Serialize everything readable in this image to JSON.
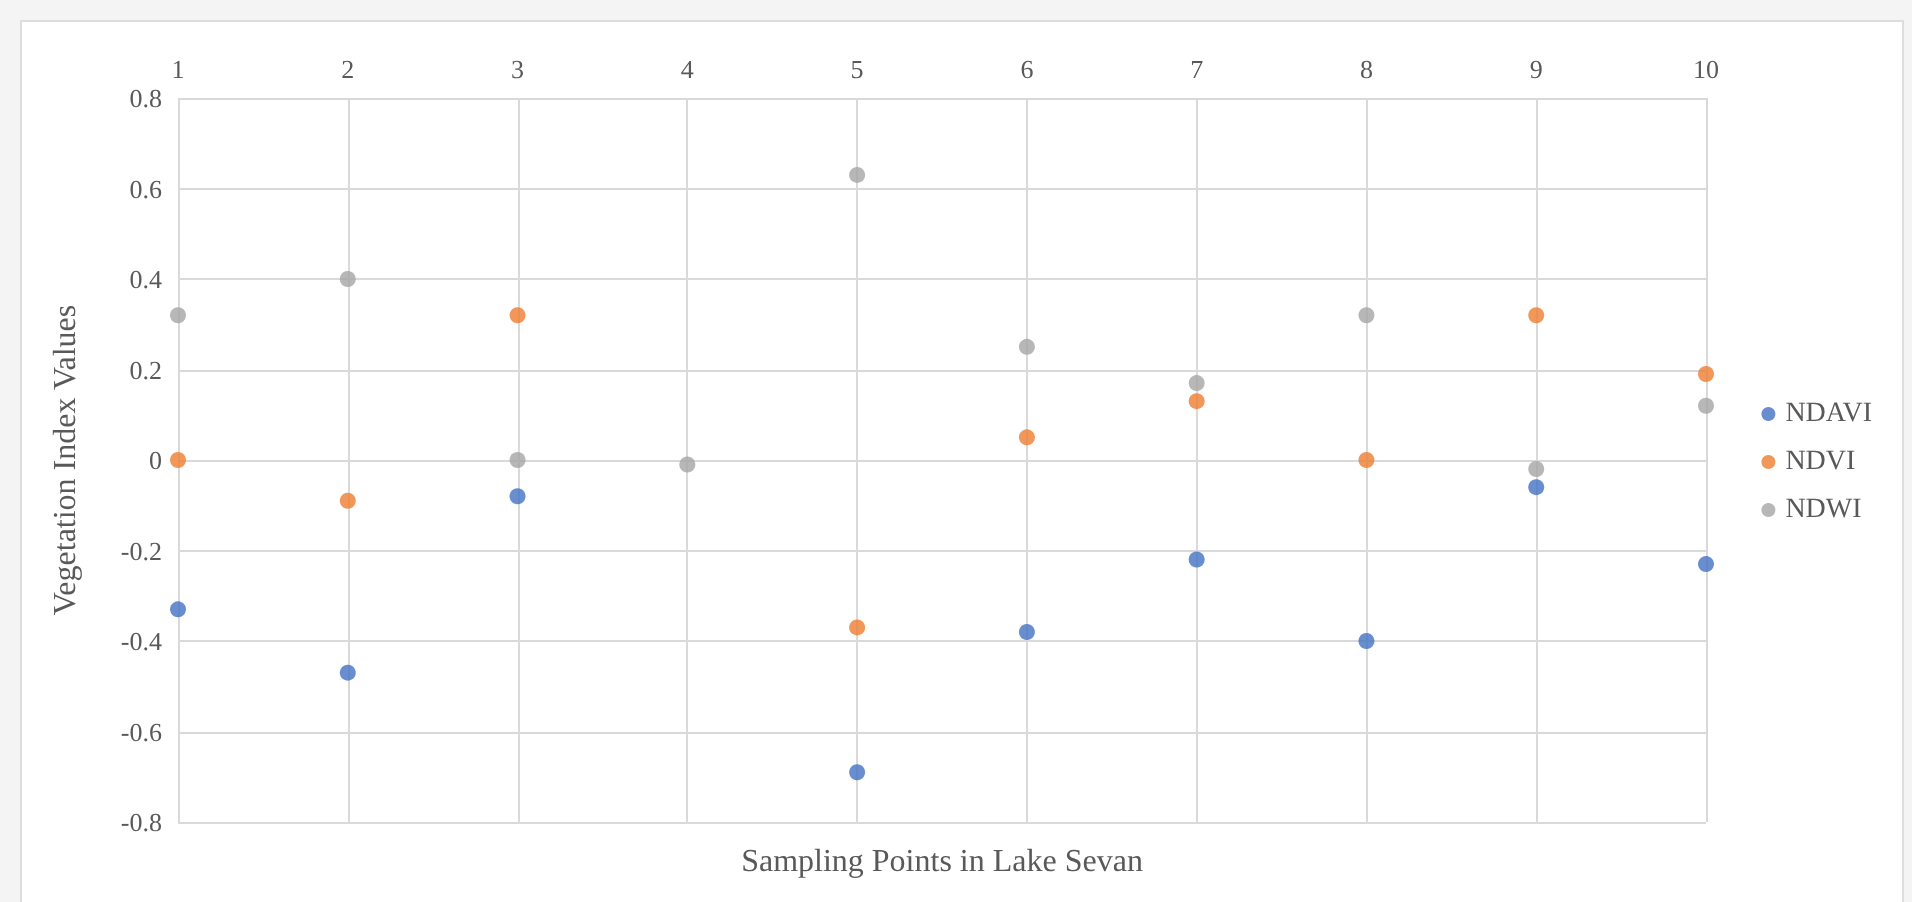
{
  "chart_data": {
    "type": "scatter",
    "xlabel": "Sampling Points in Lake Sevan",
    "ylabel": "Vegetation Index Values",
    "x": [
      1,
      2,
      3,
      4,
      5,
      6,
      7,
      8,
      9,
      10
    ],
    "series": [
      {
        "name": "NDAVI",
        "color": "#4472c4",
        "values": [
          -0.33,
          -0.47,
          -0.08,
          null,
          -0.69,
          -0.38,
          -0.22,
          -0.4,
          -0.06,
          -0.23
        ]
      },
      {
        "name": "NDVI",
        "color": "#ed7d31",
        "values": [
          0.0,
          -0.09,
          0.32,
          null,
          -0.37,
          0.05,
          0.13,
          0.0,
          0.32,
          0.19
        ]
      },
      {
        "name": "NDWI",
        "color": "#a5a5a5",
        "values": [
          0.32,
          0.4,
          0.0,
          -0.01,
          0.63,
          0.25,
          0.17,
          0.32,
          -0.02,
          0.12
        ]
      }
    ],
    "xlim": [
      1,
      10
    ],
    "xticks": [
      1,
      2,
      3,
      4,
      5,
      6,
      7,
      8,
      9,
      10
    ],
    "ylim": [
      -0.8,
      0.8
    ],
    "yticks": [
      -0.8,
      -0.6,
      -0.4,
      -0.2,
      0,
      0.2,
      0.4,
      0.6,
      0.8
    ],
    "grid": true,
    "legend": "right",
    "marker": "circle"
  }
}
